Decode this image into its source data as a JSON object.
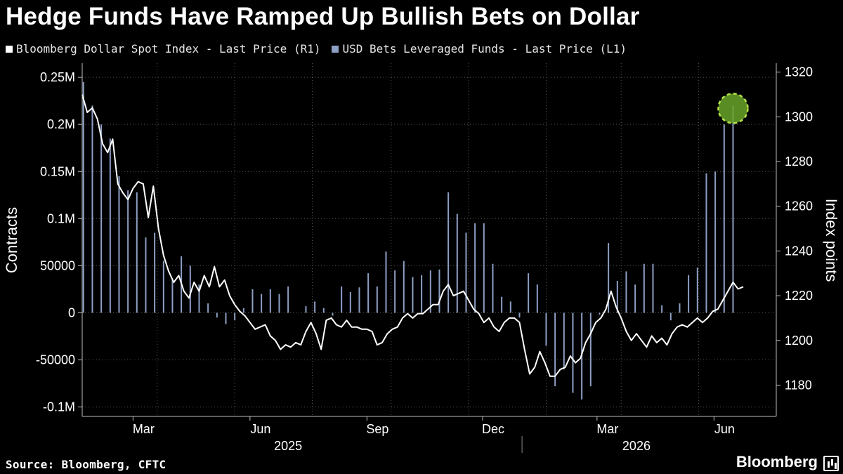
{
  "title": "Hedge Funds Have Ramped Up Bullish Bets on Dollar",
  "source": "Source: Bloomberg, CFTC",
  "brand": "Bloomberg",
  "colors": {
    "line": "#ffffff",
    "bars": "#8d9fc4",
    "highlight": "#6aa52a",
    "grid": "#555555"
  },
  "chart_data": {
    "type": "bar+line",
    "legend": {
      "line_label": "Bloomberg Dollar Spot Index - Last Price (R1)",
      "bars_label": "USD Bets Leveraged Funds - Last Price (L1)"
    },
    "left_axis": {
      "label": "Contracts",
      "range": [
        -110000,
        265000
      ],
      "ticks": [
        {
          "v": 250000,
          "label": "0.25M"
        },
        {
          "v": 200000,
          "label": "0.2M"
        },
        {
          "v": 150000,
          "label": "0.15M"
        },
        {
          "v": 100000,
          "label": "0.1M"
        },
        {
          "v": 50000,
          "label": "50000"
        },
        {
          "v": 0,
          "label": "0"
        },
        {
          "v": -50000,
          "label": "-50000"
        },
        {
          "v": -100000,
          "label": "-0.1M"
        }
      ]
    },
    "right_axis": {
      "label": "Index points",
      "range": [
        1166,
        1324
      ],
      "ticks": [
        {
          "v": 1320,
          "label": "1320"
        },
        {
          "v": 1300,
          "label": "1300"
        },
        {
          "v": 1280,
          "label": "1280"
        },
        {
          "v": 1260,
          "label": "1260"
        },
        {
          "v": 1240,
          "label": "1240"
        },
        {
          "v": 1220,
          "label": "1220"
        },
        {
          "v": 1200,
          "label": "1200"
        },
        {
          "v": 1180,
          "label": "1180"
        }
      ]
    },
    "x_axis": {
      "start": "2025-01-20",
      "end": "2026-07-20",
      "month_labels": [
        {
          "date": "2025-03-01",
          "label": "Mar"
        },
        {
          "date": "2025-06-01",
          "label": "Jun"
        },
        {
          "date": "2025-09-01",
          "label": "Sep"
        },
        {
          "date": "2025-12-01",
          "label": "Dec"
        },
        {
          "date": "2026-03-01",
          "label": "Mar"
        },
        {
          "date": "2026-06-01",
          "label": "Jun"
        }
      ],
      "year_labels": [
        {
          "date": "2025-07-01",
          "label": "2025"
        },
        {
          "date": "2026-04-01",
          "label": "2026"
        }
      ],
      "year_divider": "2026-01-01"
    },
    "gridlines": {
      "vertical": [
        "2025-01-20",
        "2025-03-20",
        "2025-05-20",
        "2025-07-20",
        "2025-09-20",
        "2025-11-20",
        "2026-01-20",
        "2026-03-20",
        "2026-05-20",
        "2026-07-20"
      ],
      "horizontal_left": [
        250000,
        200000,
        150000,
        100000,
        50000,
        0,
        -50000,
        -100000
      ]
    },
    "bars": [
      {
        "date": "2025-01-21",
        "value": 245000
      },
      {
        "date": "2025-01-28",
        "value": 220000
      },
      {
        "date": "2025-02-04",
        "value": 200000
      },
      {
        "date": "2025-02-11",
        "value": 185000
      },
      {
        "date": "2025-02-18",
        "value": 145000
      },
      {
        "date": "2025-02-25",
        "value": 130000
      },
      {
        "date": "2025-03-04",
        "value": 128000
      },
      {
        "date": "2025-03-11",
        "value": 80000
      },
      {
        "date": "2025-03-18",
        "value": 85000
      },
      {
        "date": "2025-03-25",
        "value": 55000
      },
      {
        "date": "2025-04-01",
        "value": 35000
      },
      {
        "date": "2025-04-08",
        "value": 60000
      },
      {
        "date": "2025-04-15",
        "value": 50000
      },
      {
        "date": "2025-04-22",
        "value": 30000
      },
      {
        "date": "2025-04-29",
        "value": 10000
      },
      {
        "date": "2025-05-06",
        "value": -5000
      },
      {
        "date": "2025-05-13",
        "value": -12000
      },
      {
        "date": "2025-05-20",
        "value": -8000
      },
      {
        "date": "2025-05-27",
        "value": 5000
      },
      {
        "date": "2025-06-03",
        "value": 25000
      },
      {
        "date": "2025-06-10",
        "value": 20000
      },
      {
        "date": "2025-06-17",
        "value": 25000
      },
      {
        "date": "2025-06-24",
        "value": 20000
      },
      {
        "date": "2025-07-01",
        "value": 28000
      },
      {
        "date": "2025-07-15",
        "value": 7000
      },
      {
        "date": "2025-07-22",
        "value": 12000
      },
      {
        "date": "2025-07-29",
        "value": 5000
      },
      {
        "date": "2025-08-05",
        "value": -3000
      },
      {
        "date": "2025-08-12",
        "value": 28000
      },
      {
        "date": "2025-08-19",
        "value": 22000
      },
      {
        "date": "2025-08-26",
        "value": 27000
      },
      {
        "date": "2025-09-02",
        "value": 42000
      },
      {
        "date": "2025-09-09",
        "value": 28000
      },
      {
        "date": "2025-09-16",
        "value": 65000
      },
      {
        "date": "2025-09-23",
        "value": 45000
      },
      {
        "date": "2025-09-30",
        "value": 55000
      },
      {
        "date": "2025-10-07",
        "value": 38000
      },
      {
        "date": "2025-10-14",
        "value": 40000
      },
      {
        "date": "2025-10-21",
        "value": 45000
      },
      {
        "date": "2025-10-28",
        "value": 46000
      },
      {
        "date": "2025-11-04",
        "value": 128000
      },
      {
        "date": "2025-11-11",
        "value": 105000
      },
      {
        "date": "2025-11-18",
        "value": 85000
      },
      {
        "date": "2025-11-25",
        "value": 95000
      },
      {
        "date": "2025-12-02",
        "value": 95000
      },
      {
        "date": "2025-12-09",
        "value": 52000
      },
      {
        "date": "2025-12-16",
        "value": 17000
      },
      {
        "date": "2025-12-23",
        "value": 12000
      },
      {
        "date": "2025-12-30",
        "value": -5000
      },
      {
        "date": "2026-01-06",
        "value": 42000
      },
      {
        "date": "2026-01-13",
        "value": 30000
      },
      {
        "date": "2026-01-20",
        "value": -35000
      },
      {
        "date": "2026-01-27",
        "value": -78000
      },
      {
        "date": "2026-02-03",
        "value": -60000
      },
      {
        "date": "2026-02-10",
        "value": -85000
      },
      {
        "date": "2026-02-17",
        "value": -92000
      },
      {
        "date": "2026-02-24",
        "value": -78000
      },
      {
        "date": "2026-03-03",
        "value": -2000
      },
      {
        "date": "2026-03-10",
        "value": 74000
      },
      {
        "date": "2026-03-17",
        "value": 34000
      },
      {
        "date": "2026-03-24",
        "value": 44000
      },
      {
        "date": "2026-03-31",
        "value": 30000
      },
      {
        "date": "2026-04-07",
        "value": 52000
      },
      {
        "date": "2026-04-14",
        "value": 52000
      },
      {
        "date": "2026-04-21",
        "value": 8000
      },
      {
        "date": "2026-04-28",
        "value": -8000
      },
      {
        "date": "2026-05-05",
        "value": 10000
      },
      {
        "date": "2026-05-12",
        "value": 40000
      },
      {
        "date": "2026-05-19",
        "value": 48000
      },
      {
        "date": "2026-05-26",
        "value": 148000
      },
      {
        "date": "2026-06-02",
        "value": 150000
      },
      {
        "date": "2026-06-09",
        "value": 200000
      },
      {
        "date": "2026-06-16",
        "value": 220000
      }
    ],
    "line": [
      {
        "date": "2025-01-20",
        "value": 1310
      },
      {
        "date": "2025-01-24",
        "value": 1302
      },
      {
        "date": "2025-01-28",
        "value": 1304
      },
      {
        "date": "2025-02-01",
        "value": 1299
      },
      {
        "date": "2025-02-05",
        "value": 1288
      },
      {
        "date": "2025-02-09",
        "value": 1284
      },
      {
        "date": "2025-02-13",
        "value": 1290
      },
      {
        "date": "2025-02-17",
        "value": 1270
      },
      {
        "date": "2025-02-21",
        "value": 1266
      },
      {
        "date": "2025-02-25",
        "value": 1263
      },
      {
        "date": "2025-03-01",
        "value": 1268
      },
      {
        "date": "2025-03-05",
        "value": 1271
      },
      {
        "date": "2025-03-09",
        "value": 1270
      },
      {
        "date": "2025-03-13",
        "value": 1255
      },
      {
        "date": "2025-03-17",
        "value": 1269
      },
      {
        "date": "2025-03-21",
        "value": 1250
      },
      {
        "date": "2025-03-25",
        "value": 1238
      },
      {
        "date": "2025-03-29",
        "value": 1231
      },
      {
        "date": "2025-04-02",
        "value": 1226
      },
      {
        "date": "2025-04-06",
        "value": 1229
      },
      {
        "date": "2025-04-10",
        "value": 1222
      },
      {
        "date": "2025-04-14",
        "value": 1219
      },
      {
        "date": "2025-04-18",
        "value": 1226
      },
      {
        "date": "2025-04-22",
        "value": 1222
      },
      {
        "date": "2025-04-26",
        "value": 1229
      },
      {
        "date": "2025-04-30",
        "value": 1224
      },
      {
        "date": "2025-05-04",
        "value": 1233
      },
      {
        "date": "2025-05-08",
        "value": 1224
      },
      {
        "date": "2025-05-12",
        "value": 1227
      },
      {
        "date": "2025-05-16",
        "value": 1220
      },
      {
        "date": "2025-05-20",
        "value": 1216
      },
      {
        "date": "2025-05-24",
        "value": 1213
      },
      {
        "date": "2025-05-28",
        "value": 1211
      },
      {
        "date": "2025-06-01",
        "value": 1208
      },
      {
        "date": "2025-06-05",
        "value": 1205
      },
      {
        "date": "2025-06-09",
        "value": 1206
      },
      {
        "date": "2025-06-13",
        "value": 1207
      },
      {
        "date": "2025-06-17",
        "value": 1202
      },
      {
        "date": "2025-06-21",
        "value": 1200
      },
      {
        "date": "2025-06-25",
        "value": 1196
      },
      {
        "date": "2025-06-29",
        "value": 1198
      },
      {
        "date": "2025-07-03",
        "value": 1197
      },
      {
        "date": "2025-07-07",
        "value": 1199
      },
      {
        "date": "2025-07-11",
        "value": 1198
      },
      {
        "date": "2025-07-15",
        "value": 1204
      },
      {
        "date": "2025-07-19",
        "value": 1208
      },
      {
        "date": "2025-07-23",
        "value": 1203
      },
      {
        "date": "2025-07-27",
        "value": 1196
      },
      {
        "date": "2025-07-31",
        "value": 1209
      },
      {
        "date": "2025-08-04",
        "value": 1210
      },
      {
        "date": "2025-08-08",
        "value": 1207
      },
      {
        "date": "2025-08-12",
        "value": 1206
      },
      {
        "date": "2025-08-16",
        "value": 1209
      },
      {
        "date": "2025-08-20",
        "value": 1206
      },
      {
        "date": "2025-08-24",
        "value": 1206
      },
      {
        "date": "2025-08-28",
        "value": 1205
      },
      {
        "date": "2025-09-01",
        "value": 1205
      },
      {
        "date": "2025-09-05",
        "value": 1204
      },
      {
        "date": "2025-09-09",
        "value": 1198
      },
      {
        "date": "2025-09-13",
        "value": 1199
      },
      {
        "date": "2025-09-17",
        "value": 1203
      },
      {
        "date": "2025-09-21",
        "value": 1205
      },
      {
        "date": "2025-09-25",
        "value": 1206
      },
      {
        "date": "2025-09-29",
        "value": 1210
      },
      {
        "date": "2025-10-03",
        "value": 1212
      },
      {
        "date": "2025-10-07",
        "value": 1210
      },
      {
        "date": "2025-10-11",
        "value": 1212
      },
      {
        "date": "2025-10-15",
        "value": 1212
      },
      {
        "date": "2025-10-19",
        "value": 1214
      },
      {
        "date": "2025-10-23",
        "value": 1216
      },
      {
        "date": "2025-10-27",
        "value": 1216
      },
      {
        "date": "2025-10-31",
        "value": 1222
      },
      {
        "date": "2025-11-04",
        "value": 1225
      },
      {
        "date": "2025-11-08",
        "value": 1220
      },
      {
        "date": "2025-11-12",
        "value": 1221
      },
      {
        "date": "2025-11-16",
        "value": 1222
      },
      {
        "date": "2025-11-20",
        "value": 1218
      },
      {
        "date": "2025-11-24",
        "value": 1214
      },
      {
        "date": "2025-11-28",
        "value": 1212
      },
      {
        "date": "2025-12-02",
        "value": 1208
      },
      {
        "date": "2025-12-06",
        "value": 1210
      },
      {
        "date": "2025-12-10",
        "value": 1206
      },
      {
        "date": "2025-12-14",
        "value": 1204
      },
      {
        "date": "2025-12-18",
        "value": 1208
      },
      {
        "date": "2025-12-22",
        "value": 1210
      },
      {
        "date": "2025-12-26",
        "value": 1210
      },
      {
        "date": "2025-12-30",
        "value": 1208
      },
      {
        "date": "2026-01-03",
        "value": 1196
      },
      {
        "date": "2026-01-07",
        "value": 1185
      },
      {
        "date": "2026-01-11",
        "value": 1188
      },
      {
        "date": "2026-01-15",
        "value": 1195
      },
      {
        "date": "2026-01-19",
        "value": 1190
      },
      {
        "date": "2026-01-23",
        "value": 1184
      },
      {
        "date": "2026-01-27",
        "value": 1184
      },
      {
        "date": "2026-01-31",
        "value": 1187
      },
      {
        "date": "2026-02-04",
        "value": 1188
      },
      {
        "date": "2026-02-08",
        "value": 1193
      },
      {
        "date": "2026-02-12",
        "value": 1190
      },
      {
        "date": "2026-02-16",
        "value": 1192
      },
      {
        "date": "2026-02-20",
        "value": 1199
      },
      {
        "date": "2026-02-24",
        "value": 1203
      },
      {
        "date": "2026-02-28",
        "value": 1208
      },
      {
        "date": "2026-03-04",
        "value": 1210
      },
      {
        "date": "2026-03-08",
        "value": 1214
      },
      {
        "date": "2026-03-12",
        "value": 1222
      },
      {
        "date": "2026-03-16",
        "value": 1215
      },
      {
        "date": "2026-03-20",
        "value": 1210
      },
      {
        "date": "2026-03-24",
        "value": 1204
      },
      {
        "date": "2026-03-28",
        "value": 1200
      },
      {
        "date": "2026-04-01",
        "value": 1203
      },
      {
        "date": "2026-04-05",
        "value": 1200
      },
      {
        "date": "2026-04-09",
        "value": 1197
      },
      {
        "date": "2026-04-13",
        "value": 1202
      },
      {
        "date": "2026-04-17",
        "value": 1199
      },
      {
        "date": "2026-04-21",
        "value": 1201
      },
      {
        "date": "2026-04-25",
        "value": 1198
      },
      {
        "date": "2026-04-29",
        "value": 1203
      },
      {
        "date": "2026-05-03",
        "value": 1206
      },
      {
        "date": "2026-05-07",
        "value": 1207
      },
      {
        "date": "2026-05-11",
        "value": 1206
      },
      {
        "date": "2026-05-15",
        "value": 1208
      },
      {
        "date": "2026-05-19",
        "value": 1210
      },
      {
        "date": "2026-05-23",
        "value": 1208
      },
      {
        "date": "2026-05-27",
        "value": 1210
      },
      {
        "date": "2026-05-31",
        "value": 1213
      },
      {
        "date": "2026-06-04",
        "value": 1214
      },
      {
        "date": "2026-06-08",
        "value": 1218
      },
      {
        "date": "2026-06-12",
        "value": 1222
      },
      {
        "date": "2026-06-16",
        "value": 1226
      },
      {
        "date": "2026-06-20",
        "value": 1223
      },
      {
        "date": "2026-06-24",
        "value": 1224
      }
    ],
    "highlight": {
      "date": "2026-06-16",
      "value": 220000
    }
  }
}
